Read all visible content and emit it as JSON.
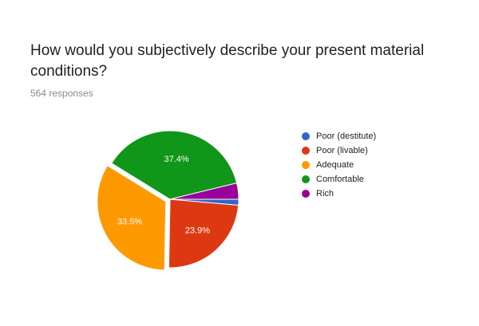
{
  "title": "How would you subjectively describe your present material conditions?",
  "response_count": "564 responses",
  "chart_data": {
    "type": "pie",
    "title": "How would you subjectively describe your present material conditions?",
    "categories": [
      "Poor (destitute)",
      "Poor (livable)",
      "Adequate",
      "Comfortable",
      "Rich"
    ],
    "values": [
      1.4,
      23.9,
      33.5,
      37.4,
      3.8
    ],
    "data_labels": [
      "",
      "23.9%",
      "33.5%",
      "37.4%",
      ""
    ],
    "colors": [
      "#3366cc",
      "#dc3912",
      "#ff9900",
      "#109618",
      "#990099"
    ],
    "legend_position": "right",
    "start_angle": "90 degrees clockwise from top (3 o'clock)",
    "exploded_slice": "Adequate"
  }
}
